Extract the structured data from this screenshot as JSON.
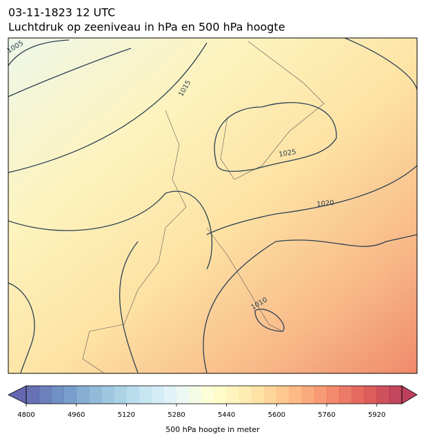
{
  "header": {
    "date": "03-11-1823 12 UTC",
    "title": "Luchtdruk op zeeniveau in hPa en 500 hPa hoogte"
  },
  "map": {
    "isobar_labels": [
      "1005",
      "1015",
      "1025",
      "1020",
      "1010"
    ]
  },
  "colorbar": {
    "label": "500 hPa hoogte in meter",
    "lim": [
      4800,
      6000
    ],
    "ticks": [
      4800,
      4960,
      5120,
      5280,
      5440,
      5600,
      5760,
      5920
    ],
    "colormap": [
      "#313695",
      "#4575b4",
      "#74add1",
      "#abd9e9",
      "#e0f3f8",
      "#ffffbf",
      "#fee090",
      "#fdae61",
      "#f46d43",
      "#d73027",
      "#a50026"
    ]
  }
}
